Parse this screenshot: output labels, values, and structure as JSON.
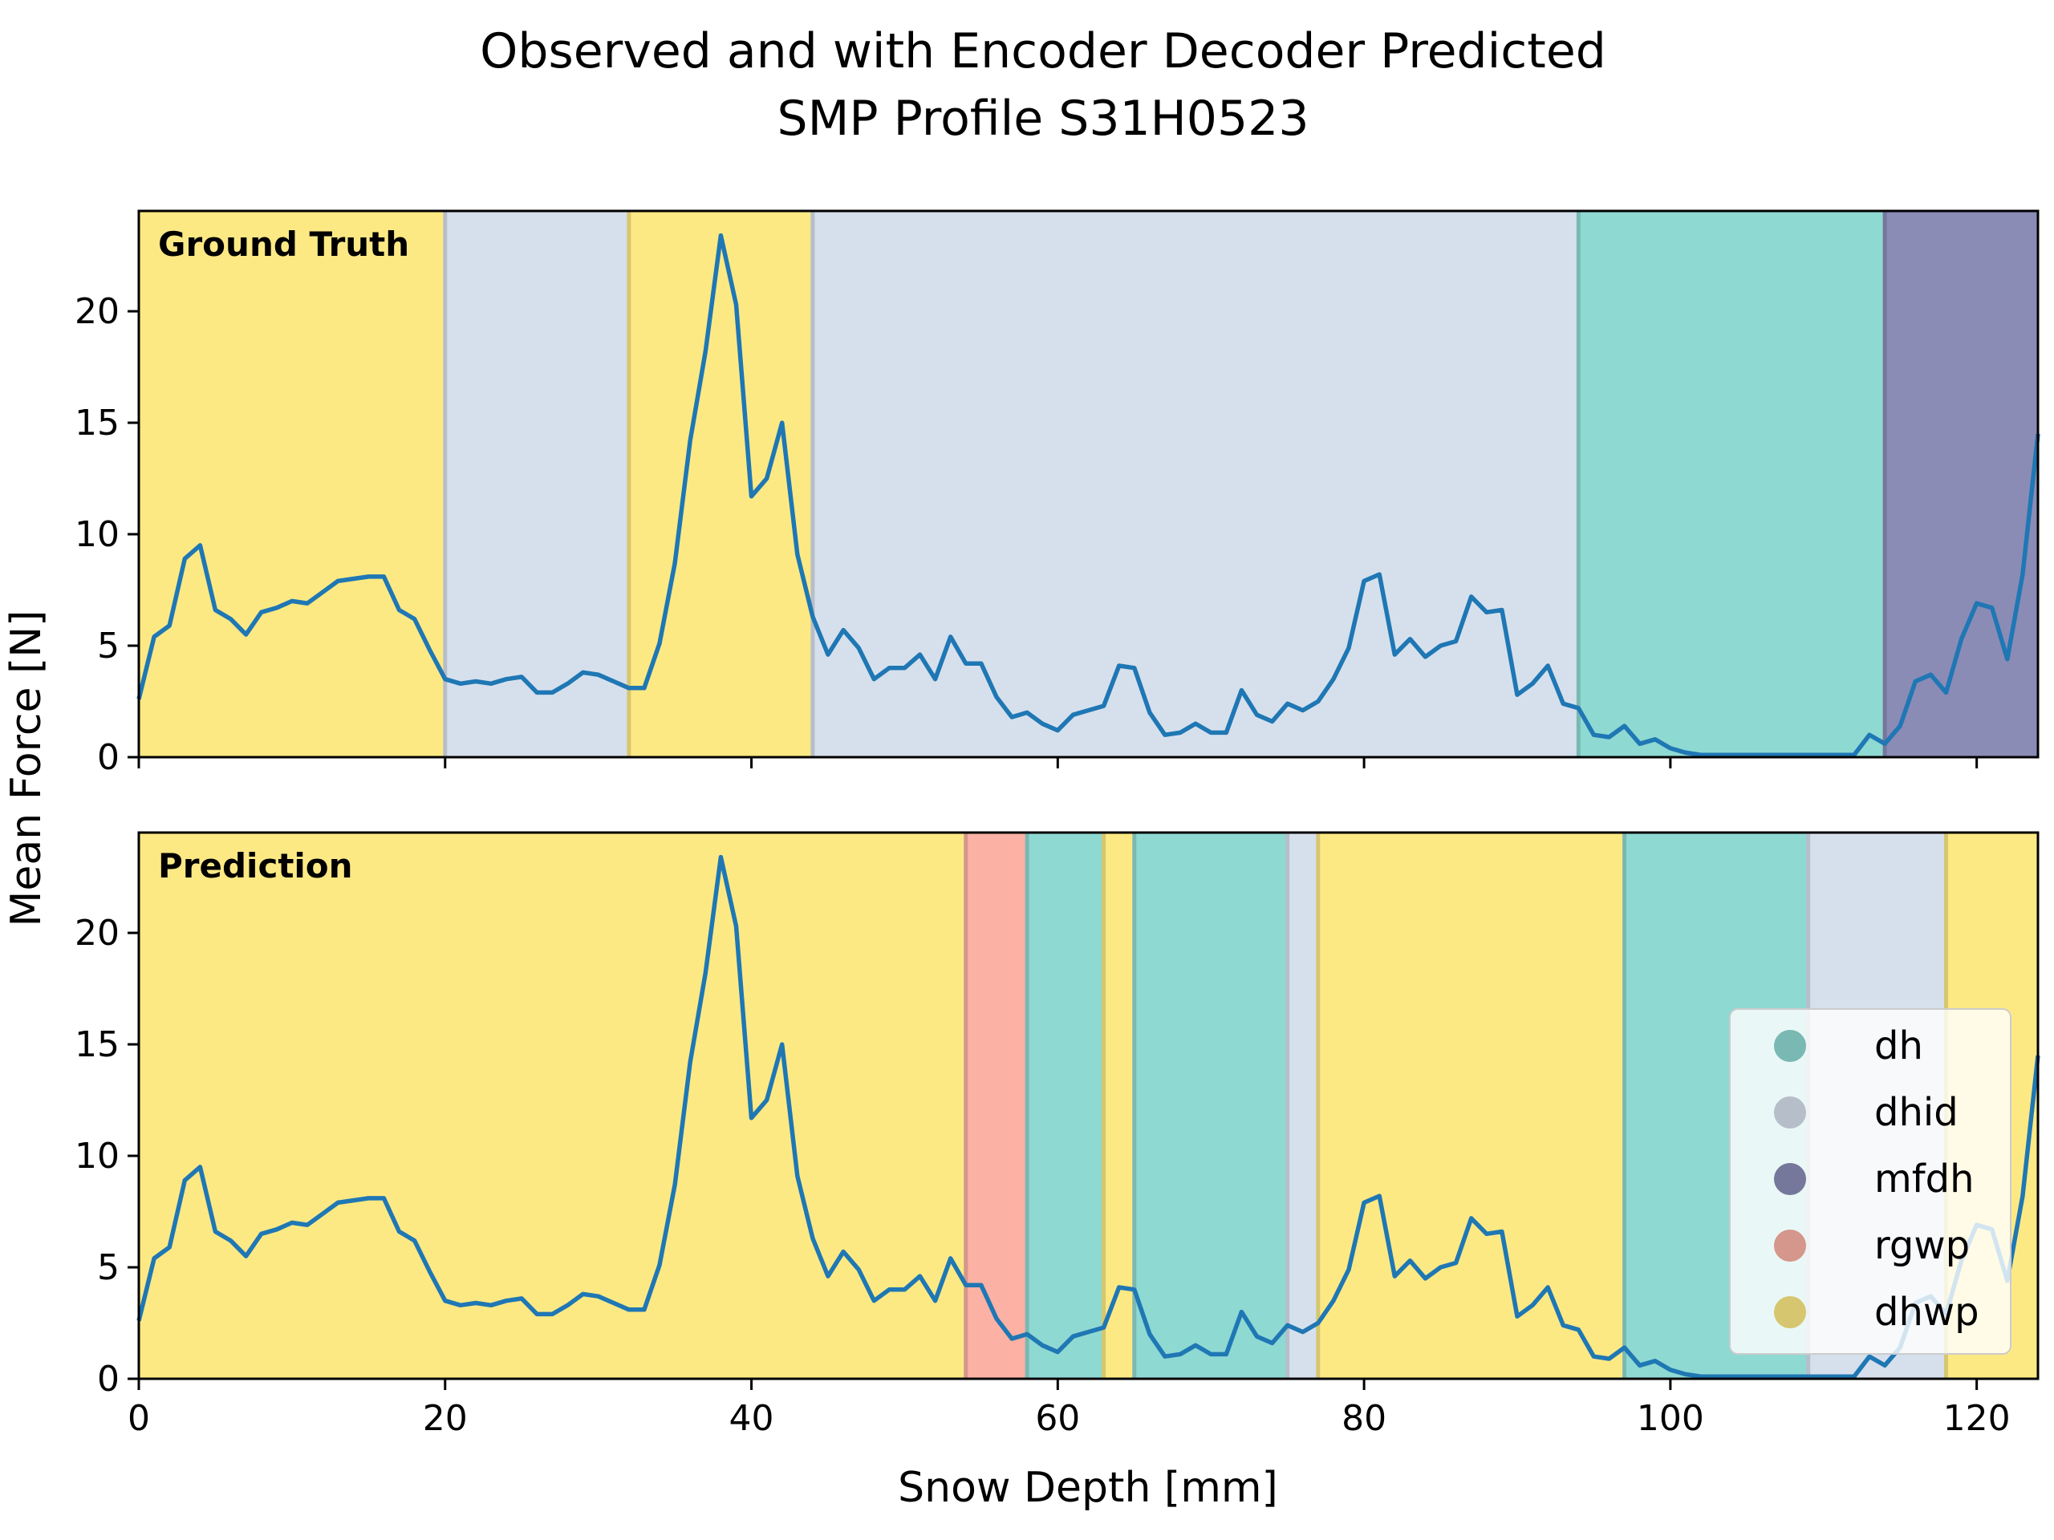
{
  "chart_data": {
    "type": "line",
    "title_lines": [
      "Observed and with Encoder Decoder Predicted",
      "SMP Profile S31H0523"
    ],
    "xlabel": "Snow Depth [mm]",
    "ylabel": "Mean Force [N]",
    "xlim": [
      0,
      124
    ],
    "ylim": [
      0,
      24.5
    ],
    "xticks": [
      0,
      20,
      40,
      60,
      80,
      100,
      120
    ],
    "yticks": [
      0,
      5,
      10,
      15,
      20
    ],
    "grid": false,
    "line_color": "#1f77b4",
    "x": [
      0,
      1,
      2,
      3,
      4,
      5,
      6,
      7,
      8,
      9,
      10,
      11,
      12,
      13,
      14,
      15,
      16,
      17,
      18,
      19,
      20,
      21,
      22,
      23,
      24,
      25,
      26,
      27,
      28,
      29,
      30,
      31,
      32,
      33,
      34,
      35,
      36,
      37,
      38,
      39,
      40,
      41,
      42,
      43,
      44,
      45,
      46,
      47,
      48,
      49,
      50,
      51,
      52,
      53,
      54,
      55,
      56,
      57,
      58,
      59,
      60,
      61,
      62,
      63,
      64,
      65,
      66,
      67,
      68,
      69,
      70,
      71,
      72,
      73,
      74,
      75,
      76,
      77,
      78,
      79,
      80,
      81,
      82,
      83,
      84,
      85,
      86,
      87,
      88,
      89,
      90,
      91,
      92,
      93,
      94,
      95,
      96,
      97,
      98,
      99,
      100,
      101,
      102,
      103,
      104,
      105,
      106,
      107,
      108,
      109,
      110,
      111,
      112,
      113,
      114,
      115,
      116,
      117,
      118,
      119,
      120,
      121,
      122,
      123,
      124
    ],
    "y": [
      2.6,
      5.4,
      5.9,
      8.9,
      9.5,
      6.6,
      6.2,
      5.5,
      6.5,
      6.7,
      7.0,
      6.9,
      7.4,
      7.9,
      8.0,
      8.1,
      8.1,
      6.6,
      6.2,
      4.8,
      3.5,
      3.3,
      3.4,
      3.3,
      3.5,
      3.6,
      2.9,
      2.9,
      3.3,
      3.8,
      3.7,
      3.4,
      3.1,
      3.1,
      5.1,
      8.7,
      14.2,
      18.2,
      23.4,
      20.3,
      11.7,
      12.5,
      15.0,
      9.1,
      6.3,
      4.6,
      5.7,
      4.9,
      3.5,
      4.0,
      4.0,
      4.6,
      3.5,
      5.4,
      4.2,
      4.2,
      2.7,
      1.8,
      2.0,
      1.5,
      1.2,
      1.9,
      2.1,
      2.3,
      4.1,
      4.0,
      2.0,
      1.0,
      1.1,
      1.5,
      1.1,
      1.1,
      3.0,
      1.9,
      1.6,
      2.4,
      2.1,
      2.5,
      3.5,
      4.9,
      7.9,
      8.2,
      4.6,
      5.3,
      4.5,
      5.0,
      5.2,
      7.2,
      6.5,
      6.6,
      2.8,
      3.3,
      4.1,
      2.4,
      2.2,
      1.0,
      0.9,
      1.4,
      0.6,
      0.8,
      0.4,
      0.2,
      0.1,
      0.1,
      0.1,
      0.1,
      0.1,
      0.1,
      0.1,
      0.1,
      0.1,
      0.1,
      0.1,
      1.0,
      0.6,
      1.4,
      3.4,
      3.7,
      2.9,
      5.3,
      6.9,
      6.7,
      4.4,
      8.2,
      14.5
    ],
    "panels": [
      {
        "label": "Ground Truth",
        "segments": [
          {
            "start": 0,
            "end": 20,
            "class": "dhwp"
          },
          {
            "start": 20,
            "end": 32,
            "class": "dhid"
          },
          {
            "start": 32,
            "end": 44,
            "class": "dhwp"
          },
          {
            "start": 44,
            "end": 94,
            "class": "dhid"
          },
          {
            "start": 94,
            "end": 114,
            "class": "dh"
          },
          {
            "start": 114,
            "end": 124,
            "class": "mfdh"
          }
        ]
      },
      {
        "label": "Prediction",
        "segments": [
          {
            "start": 0,
            "end": 54,
            "class": "dhwp"
          },
          {
            "start": 54,
            "end": 58,
            "class": "rgwp"
          },
          {
            "start": 58,
            "end": 63,
            "class": "dh"
          },
          {
            "start": 63,
            "end": 65,
            "class": "dhwp"
          },
          {
            "start": 65,
            "end": 75,
            "class": "dh"
          },
          {
            "start": 75,
            "end": 77,
            "class": "dhid"
          },
          {
            "start": 77,
            "end": 97,
            "class": "dhwp"
          },
          {
            "start": 97,
            "end": 109,
            "class": "dh"
          },
          {
            "start": 109,
            "end": 118,
            "class": "dhid"
          },
          {
            "start": 118,
            "end": 124,
            "class": "dhwp"
          }
        ]
      }
    ],
    "classes": [
      {
        "name": "dh",
        "color": "#8fd9d3"
      },
      {
        "name": "dhid",
        "color": "#d6e0ec"
      },
      {
        "name": "mfdh",
        "color": "#8a8cb6"
      },
      {
        "name": "rgwp",
        "color": "#fbb1a4"
      },
      {
        "name": "dhwp",
        "color": "#fde984"
      }
    ],
    "legend_placement": "lower-right of bottom panel"
  }
}
